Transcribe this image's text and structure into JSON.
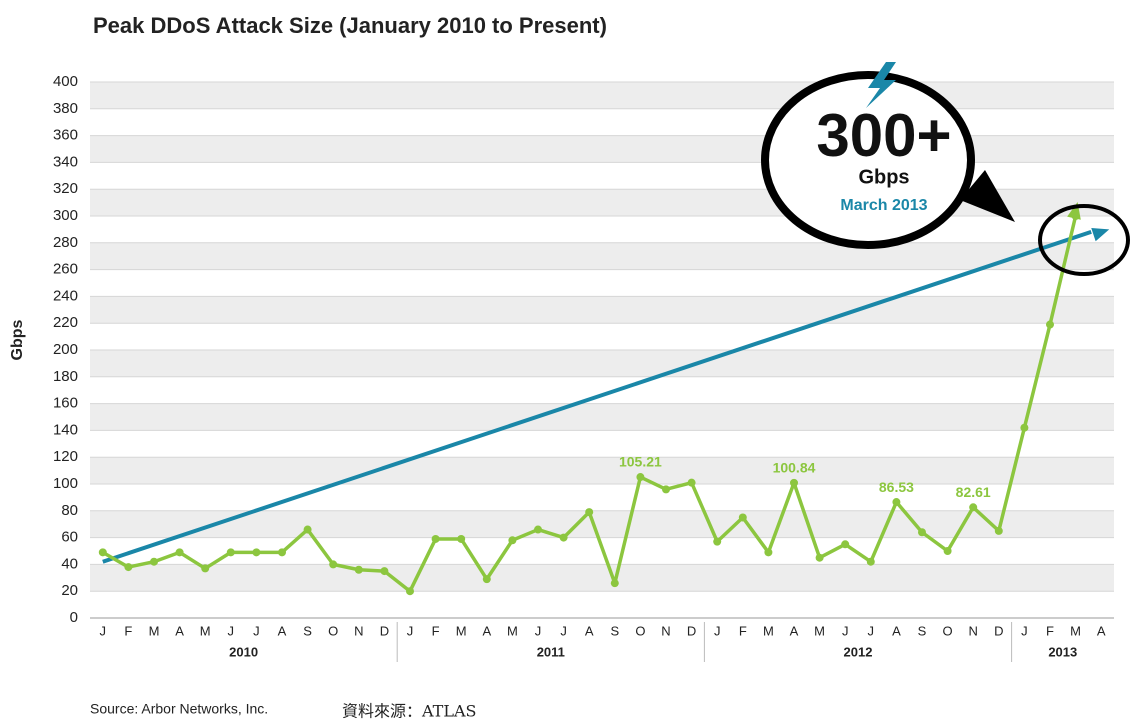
{
  "chart_data": {
    "type": "line",
    "title": "Peak DDoS Attack Size (January 2010 to Present)",
    "y_label": "Gbps",
    "categories": [
      "J",
      "F",
      "M",
      "A",
      "M",
      "J",
      "J",
      "A",
      "S",
      "O",
      "N",
      "D",
      "J",
      "F",
      "M",
      "A",
      "M",
      "J",
      "J",
      "A",
      "S",
      "O",
      "N",
      "D",
      "J",
      "F",
      "M",
      "A",
      "M",
      "J",
      "J",
      "A",
      "S",
      "O",
      "N",
      "D",
      "J",
      "F",
      "M",
      "A"
    ],
    "years": [
      "2010",
      "2011",
      "2012",
      "2013"
    ],
    "series": [
      {
        "color": "#8cc63f",
        "values": [
          49,
          38,
          42,
          49,
          37,
          49,
          49,
          49,
          66,
          40,
          36,
          35,
          20,
          59,
          59,
          29,
          58,
          66,
          60,
          79,
          26,
          105.21,
          96,
          101,
          57,
          75,
          49,
          100.84,
          45,
          55,
          42,
          86.53,
          64,
          50,
          82.61,
          65,
          142,
          219,
          300,
          null
        ],
        "value_labels": [
          null,
          null,
          null,
          null,
          null,
          null,
          null,
          null,
          null,
          null,
          null,
          null,
          null,
          null,
          null,
          null,
          null,
          null,
          null,
          null,
          null,
          "105.21",
          null,
          null,
          null,
          null,
          null,
          "100.84",
          null,
          null,
          null,
          "86.53",
          null,
          null,
          "82.61",
          null,
          null,
          null,
          null,
          null
        ]
      }
    ],
    "trend": {
      "color": "#1a87a8",
      "values": [
        42,
        290
      ]
    },
    "callout": {
      "big": "300+",
      "unit": "Gbps",
      "date": "March 2013"
    },
    "ylim": [
      0,
      400
    ],
    "yticks": [
      0,
      20,
      40,
      60,
      80,
      100,
      120,
      140,
      160,
      180,
      200,
      220,
      240,
      260,
      280,
      300,
      320,
      340,
      360,
      380,
      400
    ],
    "grid": true,
    "source": "Source: Arbor Networks, Inc.",
    "note": "資料來源：ATLAS"
  }
}
